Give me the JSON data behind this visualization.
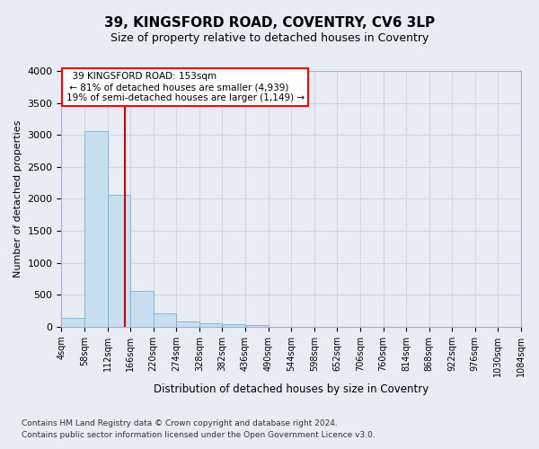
{
  "title": "39, KINGSFORD ROAD, COVENTRY, CV6 3LP",
  "subtitle": "Size of property relative to detached houses in Coventry",
  "xlabel": "Distribution of detached houses by size in Coventry",
  "ylabel": "Number of detached properties",
  "footer_line1": "Contains HM Land Registry data © Crown copyright and database right 2024.",
  "footer_line2": "Contains public sector information licensed under the Open Government Licence v3.0.",
  "annotation_line1": "39 KINGSFORD ROAD: 153sqm",
  "annotation_line2": "← 81% of detached houses are smaller (4,939)",
  "annotation_line3": "19% of semi-detached houses are larger (1,149) →",
  "bin_edges": [
    4,
    58,
    112,
    166,
    220,
    274,
    328,
    382,
    436,
    490,
    544,
    598,
    652,
    706,
    760,
    814,
    868,
    922,
    976,
    1030,
    1084
  ],
  "bin_counts": [
    140,
    3060,
    2060,
    555,
    200,
    80,
    55,
    40,
    30,
    0,
    0,
    0,
    0,
    0,
    0,
    0,
    0,
    0,
    0,
    0
  ],
  "bar_color": "#c8dff0",
  "bar_edge_color": "#7ab0d0",
  "vline_color": "#cc0000",
  "vline_x": 153,
  "ylim": [
    0,
    4000
  ],
  "yticks": [
    0,
    500,
    1000,
    1500,
    2000,
    2500,
    3000,
    3500,
    4000
  ],
  "grid_color": "#d0d8e8",
  "background_color": "#e8ecf5",
  "axes_background": "#e8ecf5",
  "title_fontsize": 11,
  "subtitle_fontsize": 9
}
